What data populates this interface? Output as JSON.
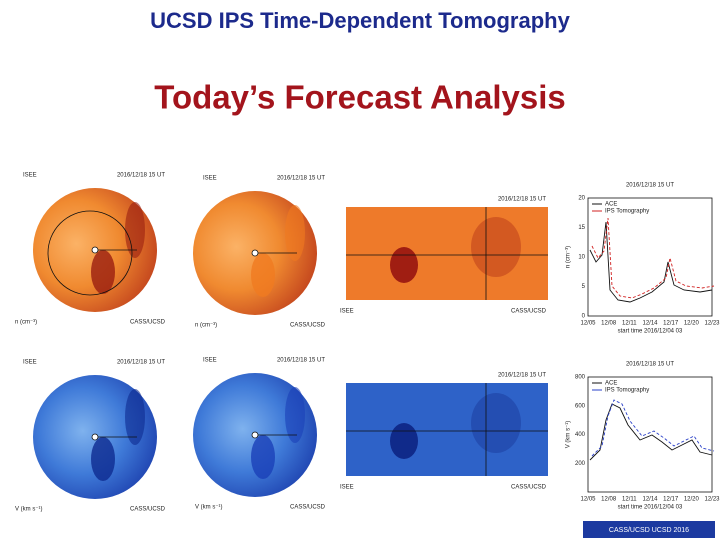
{
  "header": {
    "title": "UCSD IPS Time-Dependent Tomography",
    "subtitle": "Today’s Forecast Analysis"
  },
  "maps": [
    {
      "timestamp": "2016/12/18 15 UT",
      "source": "ISEE",
      "credit": "CASS/UCSD",
      "unit": "n (cm⁻³)"
    },
    {
      "timestamp": "2016/12/18 15 UT",
      "source": "ISEE",
      "credit": "CASS/UCSD",
      "unit": "n (cm⁻³)"
    },
    {
      "timestamp": "2016/12/18 15 UT",
      "source": "ISEE",
      "credit": "CASS/UCSD",
      "unit": "V (km s⁻¹)"
    },
    {
      "timestamp": "2016/12/18 15 UT",
      "source": "ISEE",
      "credit": "CASS/UCSD",
      "unit": "V (km s⁻¹)"
    }
  ],
  "cuts": [
    {
      "timestamp": "2016/12/18 15 UT",
      "source": "ISEE",
      "credit": "CASS/UCSD"
    },
    {
      "timestamp": "2016/12/18 15 UT",
      "source": "ISEE",
      "credit": "CASS/UCSD"
    }
  ],
  "timeseries": [
    {
      "title": "2016/12/18 15 UT",
      "legend": [
        "ACE",
        "IPS Tomography"
      ],
      "ylabel": "n (cm⁻³)",
      "yticks": [
        "20",
        "15",
        "10",
        "5",
        "0"
      ],
      "xticks": [
        "12/05",
        "12/08",
        "12/11",
        "12/14",
        "12/17",
        "12/20",
        "12/23"
      ],
      "xlabel": "start time 2016/12/04 03"
    },
    {
      "title": "2016/12/18 15 UT",
      "legend": [
        "ACE",
        "IPS Tomography"
      ],
      "ylabel": "V (km s⁻¹)",
      "yticks": [
        "800",
        "600",
        "400",
        "200"
      ],
      "xticks": [
        "12/05",
        "12/08",
        "12/11",
        "12/14",
        "12/17",
        "12/20",
        "12/23"
      ],
      "xlabel": "start time 2016/12/04 03"
    }
  ],
  "footer": "CASS/UCSD UCSD 2016"
}
